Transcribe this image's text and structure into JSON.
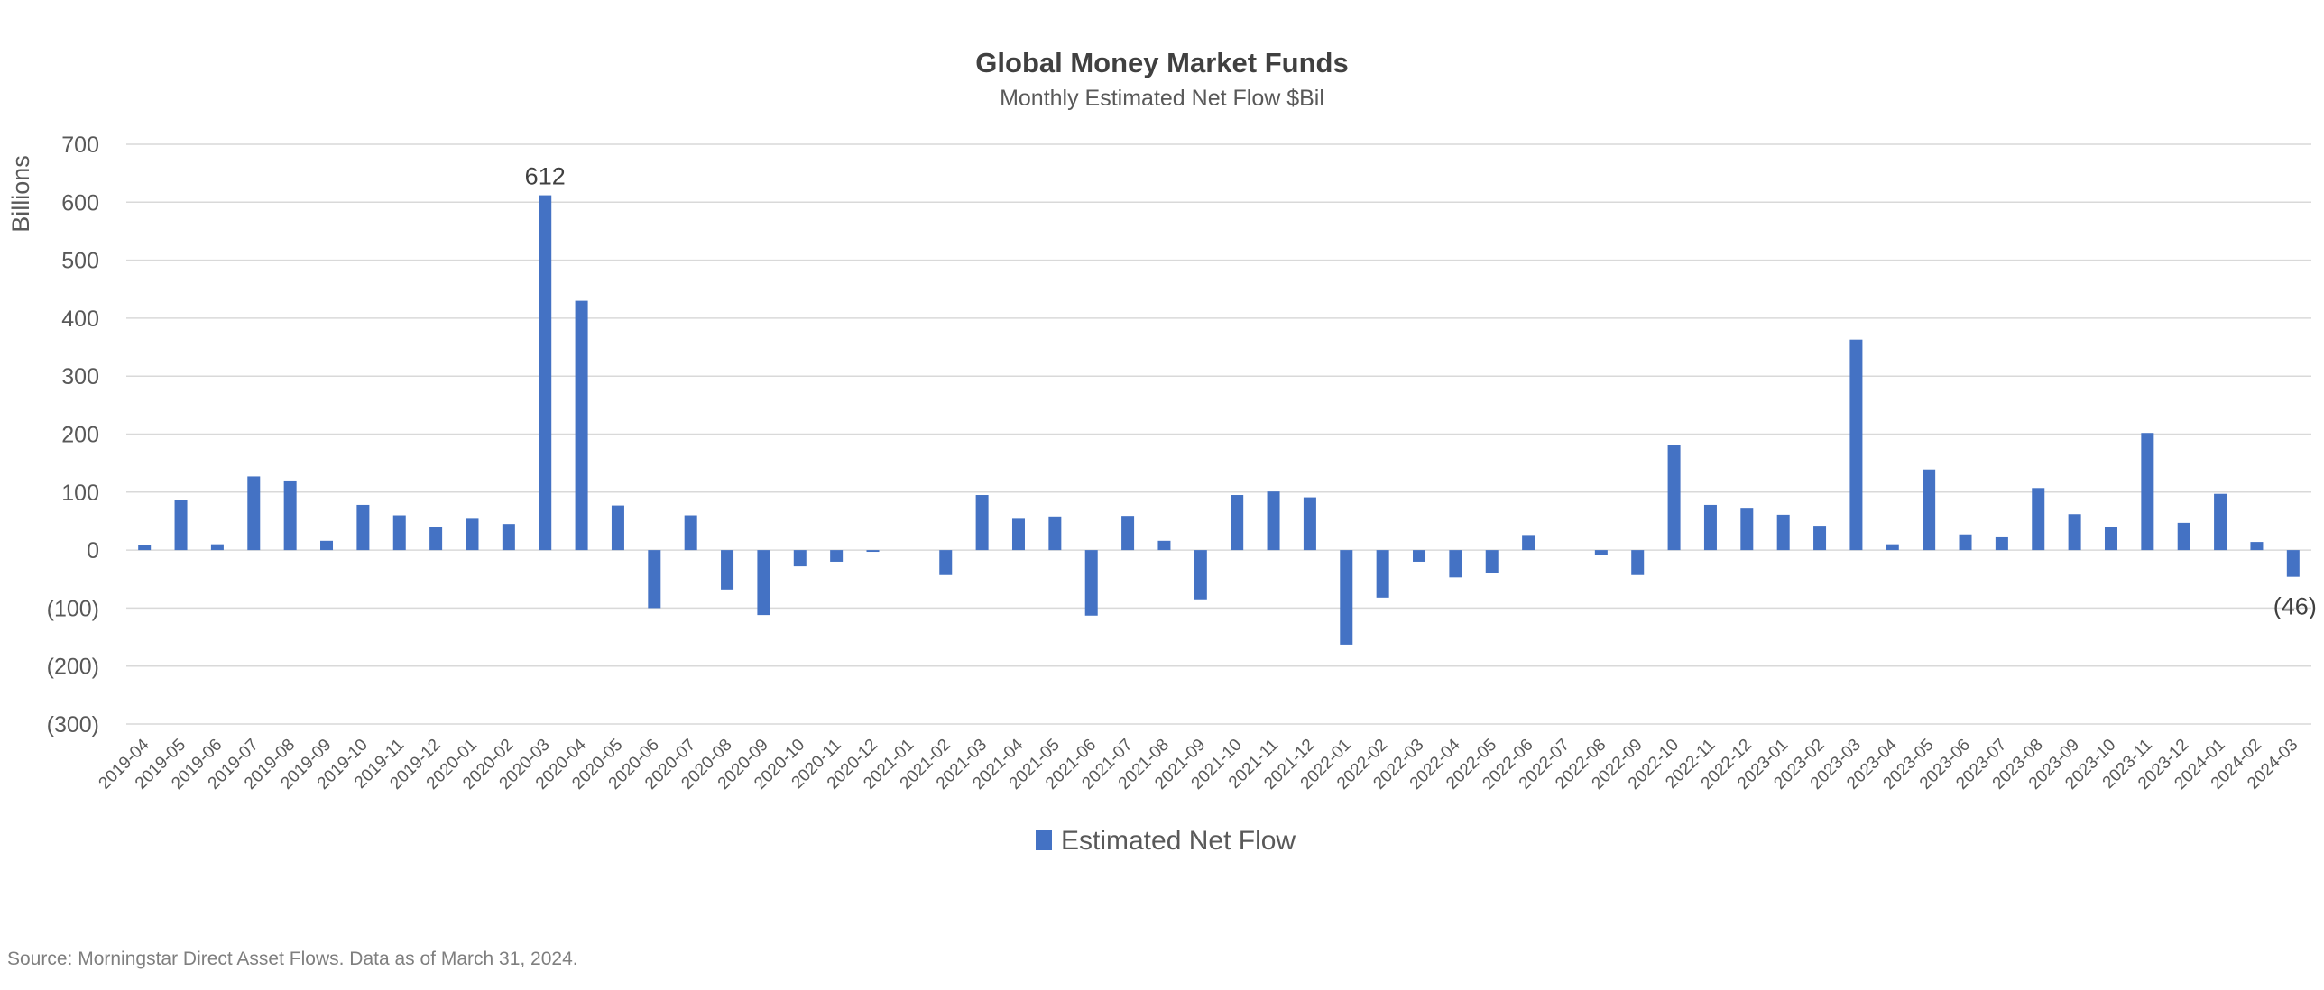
{
  "chart_data": {
    "type": "bar",
    "title": "Global Money Market Funds",
    "subtitle": "Monthly Estimated Net Flow $Bil",
    "ylabel": "Billions",
    "xlabel": "",
    "ylim": [
      -300,
      700
    ],
    "yticks": [
      700,
      600,
      500,
      400,
      300,
      200,
      100,
      0,
      -100,
      -200,
      -300
    ],
    "ytick_labels": [
      "700",
      "600",
      "500",
      "400",
      "300",
      "200",
      "100",
      "0",
      "(100)",
      "(200)",
      "(300)"
    ],
    "grid": true,
    "legend": "bottom-center",
    "categories": [
      "2019-04",
      "2019-05",
      "2019-06",
      "2019-07",
      "2019-08",
      "2019-09",
      "2019-10",
      "2019-11",
      "2019-12",
      "2020-01",
      "2020-02",
      "2020-03",
      "2020-04",
      "2020-05",
      "2020-06",
      "2020-07",
      "2020-08",
      "2020-09",
      "2020-10",
      "2020-11",
      "2020-12",
      "2021-01",
      "2021-02",
      "2021-03",
      "2021-04",
      "2021-05",
      "2021-06",
      "2021-07",
      "2021-08",
      "2021-09",
      "2021-10",
      "2021-11",
      "2021-12",
      "2022-01",
      "2022-02",
      "2022-03",
      "2022-04",
      "2022-05",
      "2022-06",
      "2022-07",
      "2022-08",
      "2022-09",
      "2022-10",
      "2022-11",
      "2022-12",
      "2023-01",
      "2023-02",
      "2023-03",
      "2023-04",
      "2023-05",
      "2023-06",
      "2023-07",
      "2023-08",
      "2023-09",
      "2023-10",
      "2023-11",
      "2023-12",
      "2024-01",
      "2024-02",
      "2024-03"
    ],
    "series": [
      {
        "name": "Estimated Net Flow",
        "color": "#4472c4",
        "values": [
          8,
          87,
          10,
          127,
          120,
          16,
          78,
          60,
          40,
          54,
          45,
          612,
          430,
          77,
          -100,
          60,
          -68,
          -112,
          -28,
          -20,
          -3,
          0,
          -43,
          95,
          54,
          58,
          -113,
          59,
          16,
          -85,
          95,
          101,
          91,
          -163,
          -82,
          -20,
          -47,
          -40,
          26,
          0,
          -8,
          -43,
          182,
          78,
          73,
          61,
          42,
          363,
          10,
          139,
          27,
          22,
          107,
          62,
          40,
          202,
          47,
          97,
          14,
          -46
        ]
      }
    ],
    "data_labels": [
      {
        "category": "2020-03",
        "text": "612"
      },
      {
        "category": "2024-03",
        "text": "(46)"
      }
    ]
  },
  "footnote": "Source: Morningstar Direct Asset Flows. Data as of March 31, 2024."
}
